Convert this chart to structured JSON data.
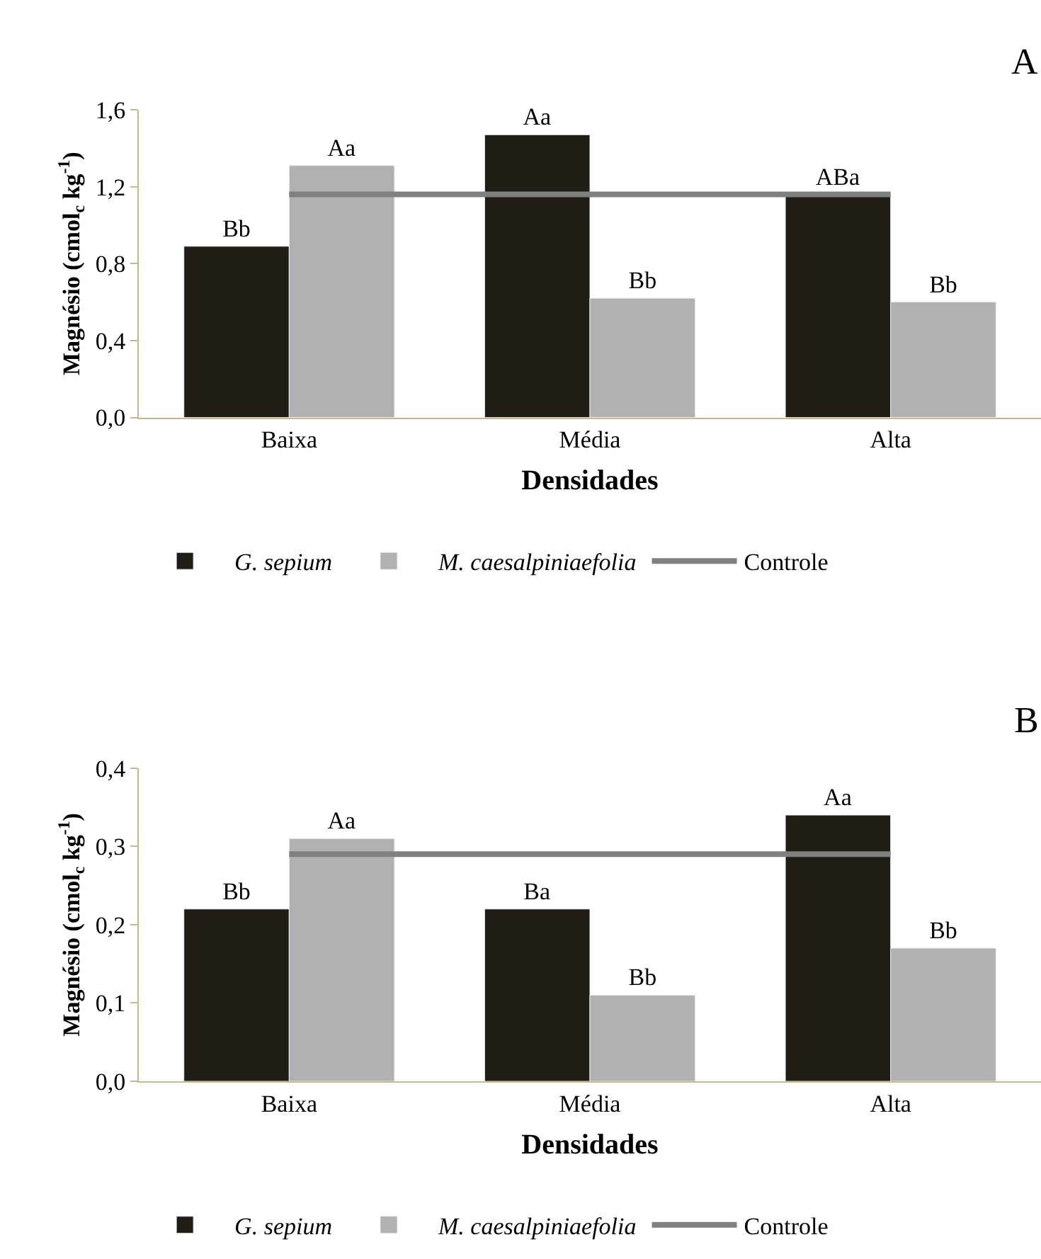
{
  "chart_data": [
    {
      "type": "bar",
      "title": "A",
      "xlabel": "Densidades",
      "ylabel": "Magnésio (cmol$_{c}$ kg$^{-1}$)",
      "categories": [
        "Baixa",
        "Média",
        "Alta"
      ],
      "ylim": [
        0,
        1.6
      ],
      "yticks": [
        {
          "value": 0,
          "label": "0,0"
        },
        {
          "value": 0.4,
          "label": "0,4"
        },
        {
          "value": 0.8,
          "label": "0,8"
        },
        {
          "value": 1.2,
          "label": "1,2"
        },
        {
          "value": 1.6,
          "label": "1,6"
        }
      ],
      "legend": "bottom",
      "series": [
        {
          "name": "G. sepium",
          "color": "#1f1d14",
          "values": [
            0.89,
            1.47,
            1.16
          ],
          "value_labels": [
            "Bb",
            "Aa",
            "ABa"
          ]
        },
        {
          "name": "M. caesalpiniaefolia",
          "color": "#b1b1b1",
          "values": [
            1.31,
            0.62,
            0.6
          ],
          "value_labels": [
            "Aa",
            "Bb",
            "Bb"
          ]
        },
        {
          "name": "Controle",
          "type": "line",
          "color": "#808080",
          "marker": "none",
          "values": [
            1.16,
            1.16,
            1.16
          ]
        }
      ]
    },
    {
      "type": "bar",
      "title": "B",
      "xlabel": "Densidades",
      "ylabel": "Magnésio (cmol$_{c}$ kg$^{-1}$)",
      "categories": [
        "Baixa",
        "Média",
        "Alta"
      ],
      "ylim": [
        0,
        0.4
      ],
      "yticks": [
        {
          "value": 0,
          "label": "0,0"
        },
        {
          "value": 0.1,
          "label": "0,1"
        },
        {
          "value": 0.2,
          "label": "0,2"
        },
        {
          "value": 0.3,
          "label": "0,3"
        },
        {
          "value": 0.4,
          "label": "0,4"
        }
      ],
      "legend": "bottom",
      "series": [
        {
          "name": "G. sepium",
          "color": "#1f1d14",
          "values": [
            0.22,
            0.22,
            0.34
          ],
          "value_labels": [
            "Bb",
            "Ba",
            "Aa"
          ]
        },
        {
          "name": "M. caesalpiniaefolia",
          "color": "#b1b1b1",
          "values": [
            0.31,
            0.11,
            0.17
          ],
          "value_labels": [
            "Aa",
            "Bb",
            "Bb"
          ]
        },
        {
          "name": "Controle",
          "type": "line",
          "color": "#808080",
          "marker": "none",
          "values": [
            0.29,
            0.29,
            0.29
          ]
        }
      ]
    }
  ]
}
